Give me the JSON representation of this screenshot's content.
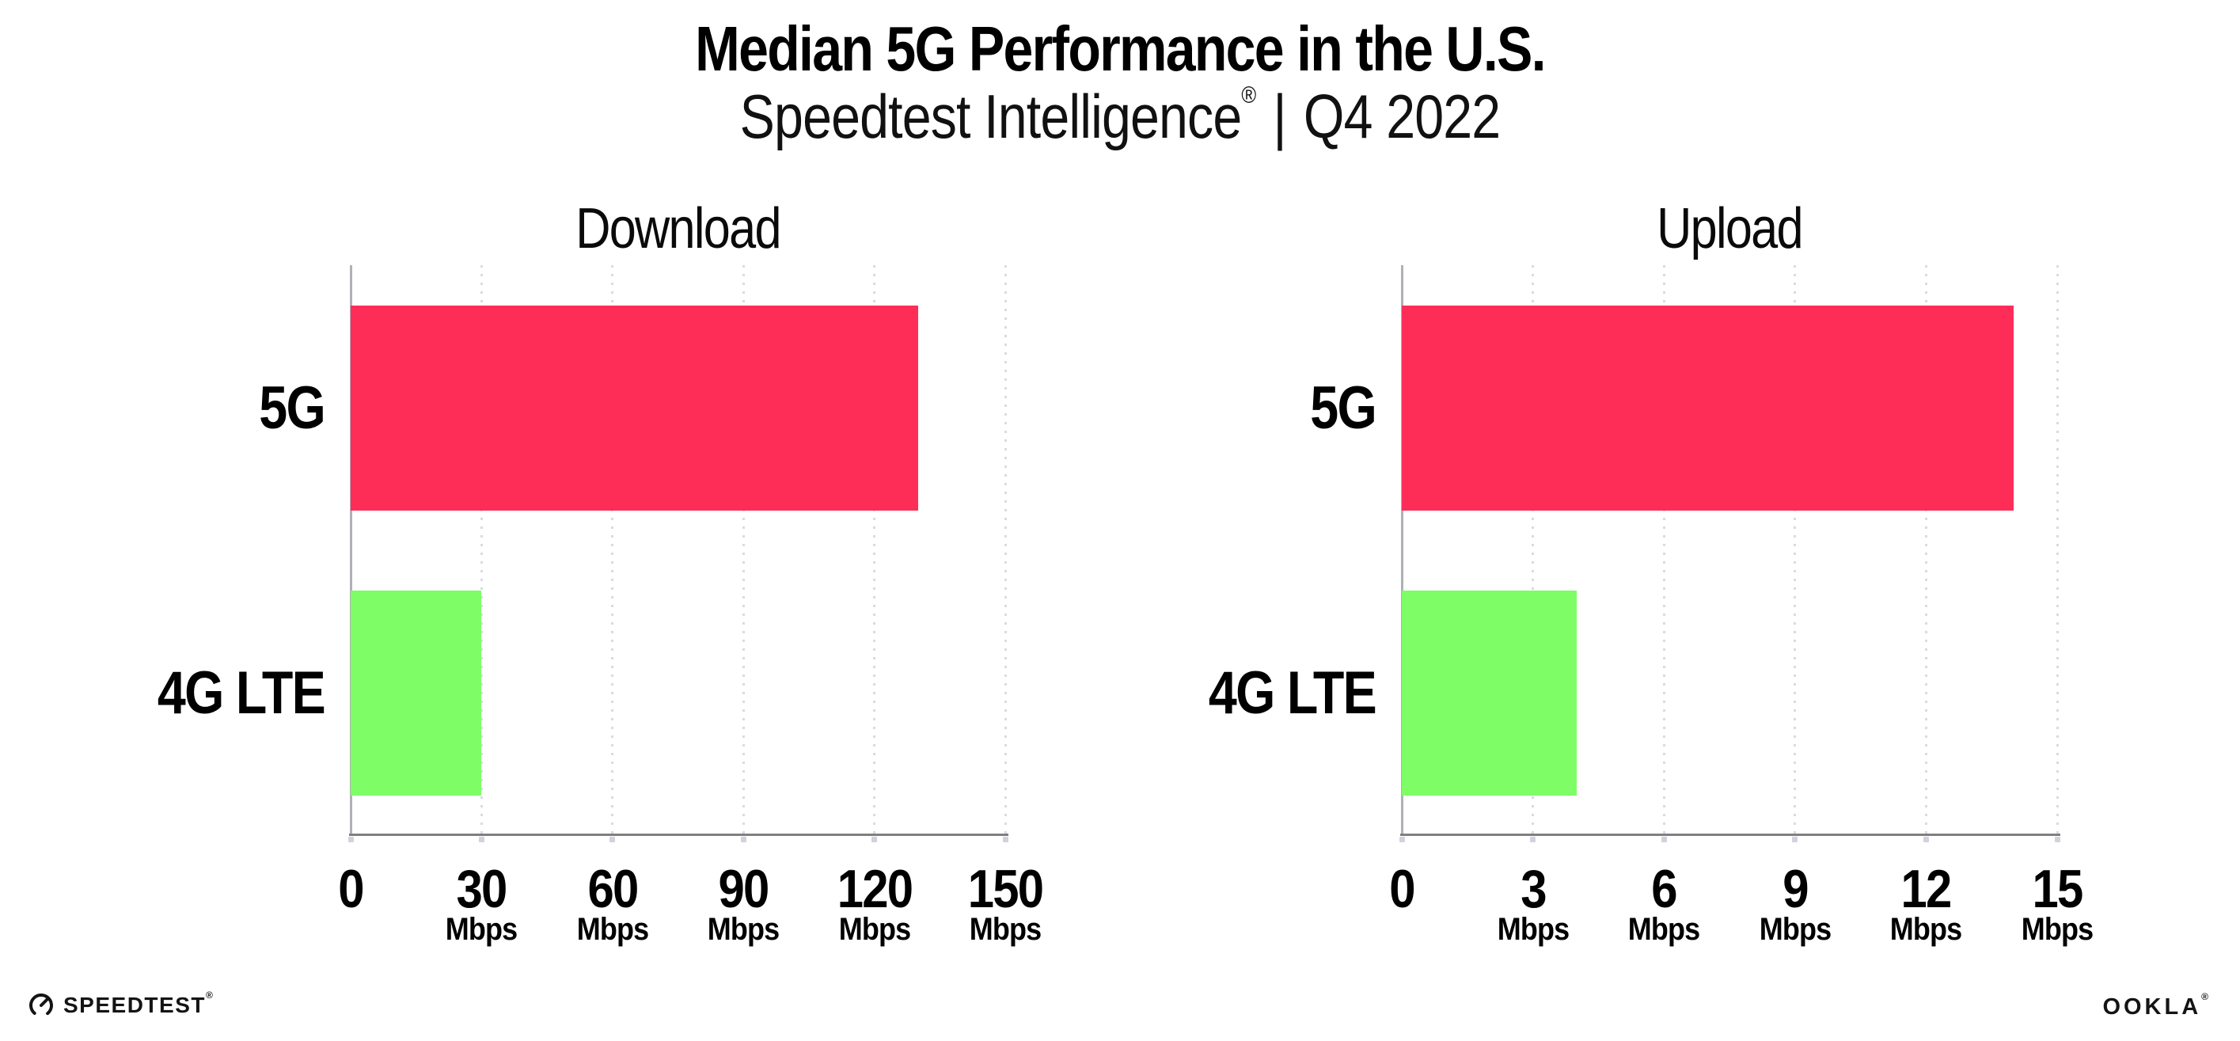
{
  "header": {
    "title": "Median 5G Performance in the U.S.",
    "subtitle": {
      "brand": "Speedtest Intelligence",
      "reg": "®",
      "sep": "|",
      "period": "Q4 2022"
    }
  },
  "colors": {
    "bar_5g": "#FE2D58",
    "bar_4g_lte": "#7EFD66",
    "axis_line": "#7F7F7F",
    "zero_line": "#B0B0B8",
    "gridline": "#DADAE4",
    "tick_mark": "#D2D2DC",
    "text": "#000000"
  },
  "chart_data": [
    {
      "type": "bar",
      "orientation": "horizontal",
      "title": "Download",
      "categories": [
        "5G",
        "4G LTE"
      ],
      "values": [
        130,
        30
      ],
      "unit": "Mbps",
      "xlim": [
        0,
        150
      ],
      "xticks": [
        0,
        30,
        60,
        90,
        120,
        150
      ],
      "bar_colors": [
        "#FE2D58",
        "#7EFD66"
      ],
      "grid": true,
      "legend": false,
      "value_labels": false
    },
    {
      "type": "bar",
      "orientation": "horizontal",
      "title": "Upload",
      "categories": [
        "5G",
        "4G LTE"
      ],
      "values": [
        14,
        4
      ],
      "unit": "Mbps",
      "xlim": [
        0,
        15
      ],
      "xticks": [
        0,
        3,
        6,
        9,
        12,
        15
      ],
      "bar_colors": [
        "#FE2D58",
        "#7EFD66"
      ],
      "grid": true,
      "legend": false,
      "value_labels": false
    }
  ],
  "footer": {
    "speedtest": {
      "label": "SPEEDTEST",
      "reg": "®"
    },
    "ookla": {
      "label": "OOKLA",
      "reg": "®"
    }
  }
}
